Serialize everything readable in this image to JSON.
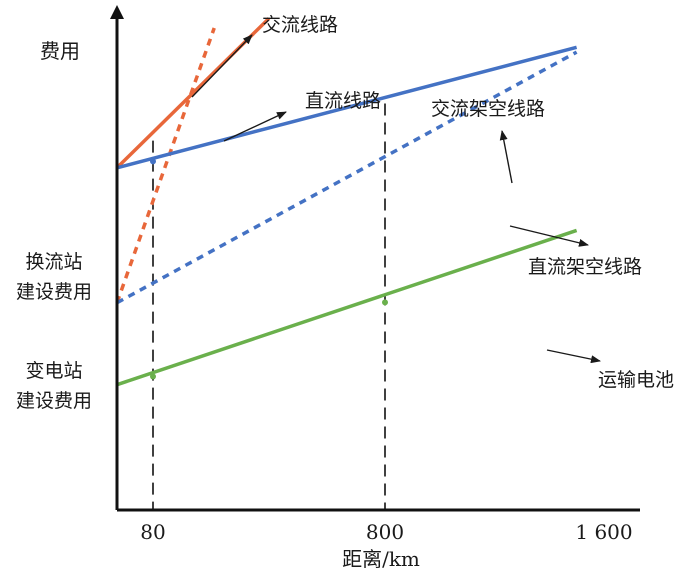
{
  "chart_data": {
    "type": "line",
    "title": "",
    "xlabel": "距离/km",
    "ylabel": "费用",
    "x_ticks": [
      "80",
      "800",
      "1 600"
    ],
    "y_text_labels": [
      "换流站\n建设费用",
      "变电站\n建设费用"
    ],
    "crossover_points_km": [
      80,
      800
    ],
    "series": [
      {
        "name": "交流线路",
        "color": "#e8673a",
        "style": "dashed",
        "x": [
          0,
          270
        ],
        "y": [
          0.43,
          1.0
        ]
      },
      {
        "name": "直流线路",
        "color": "#e8673a",
        "style": "solid",
        "x": [
          0,
          440
        ],
        "y": [
          0.71,
          1.02
        ]
      },
      {
        "name": "交流架空线路",
        "color": "#4472c4",
        "style": "dashed",
        "x": [
          0,
          1500
        ],
        "y": [
          0.43,
          0.95
        ]
      },
      {
        "name": "直流架空线路",
        "color": "#4472c4",
        "style": "solid",
        "x": [
          0,
          1500
        ],
        "y": [
          0.71,
          0.96
        ]
      },
      {
        "name": "运输电池",
        "color": "#6ab04c",
        "style": "solid",
        "x": [
          0,
          1500
        ],
        "y": [
          0.26,
          0.58
        ]
      }
    ],
    "annotations": [
      {
        "text": "交流线路",
        "target": "交流线路"
      },
      {
        "text": "直流线路",
        "target": "直流线路"
      },
      {
        "text": "交流架空线路",
        "target": "交流架空线路"
      },
      {
        "text": "直流架空线路",
        "target": "直流架空线路"
      },
      {
        "text": "运输电池",
        "target": "运输电池"
      }
    ],
    "grid": false,
    "legend": "none"
  }
}
